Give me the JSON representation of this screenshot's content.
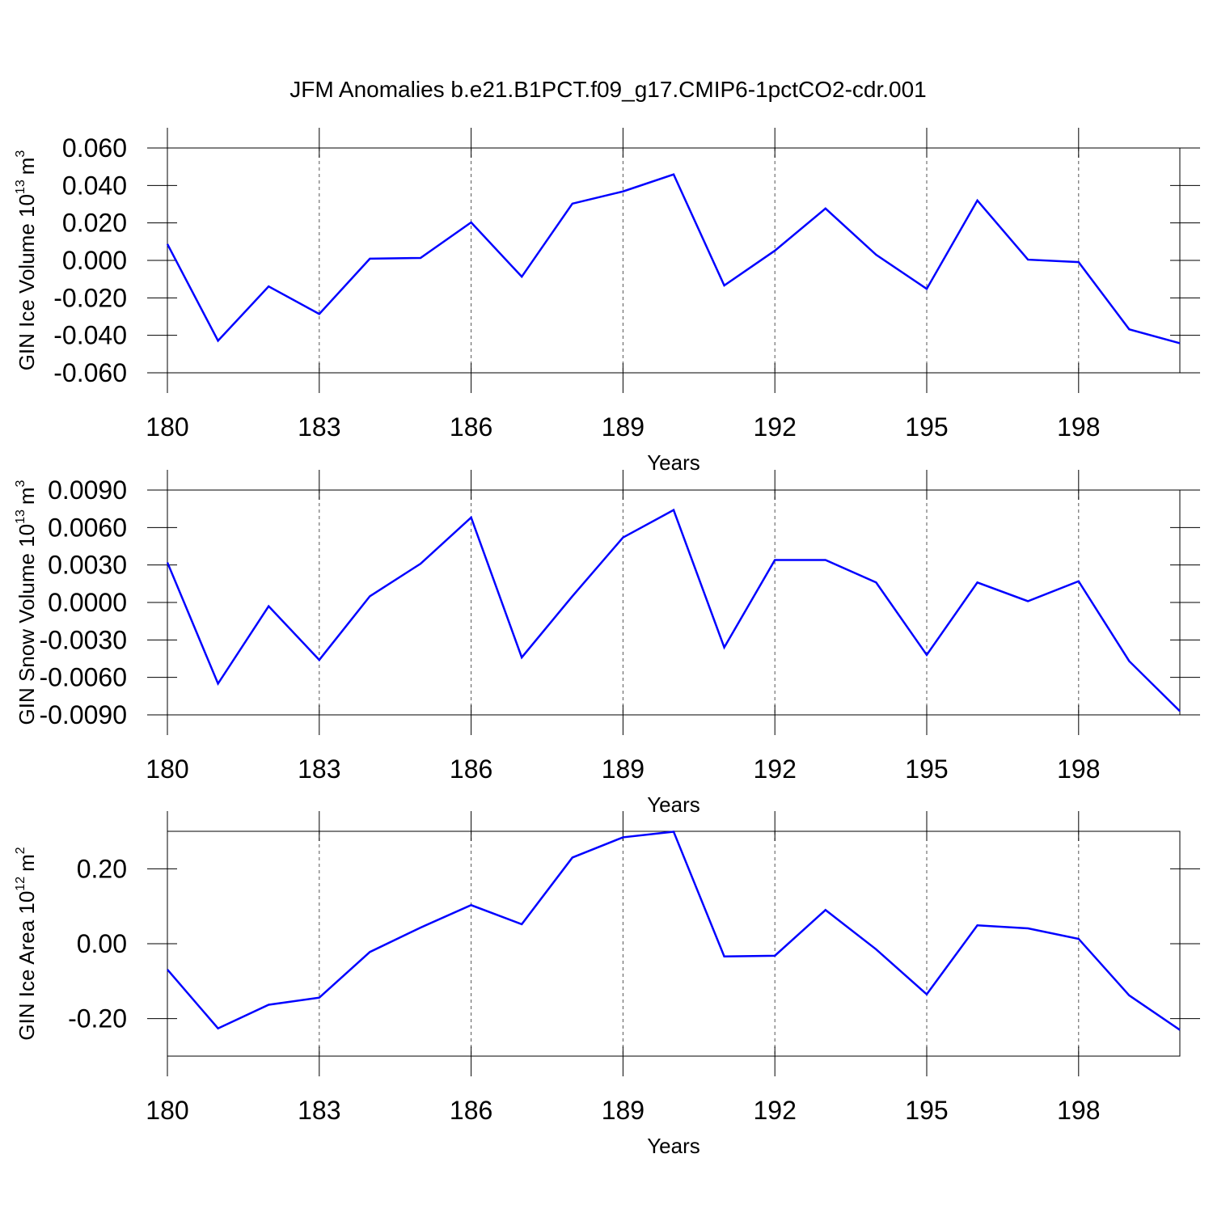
{
  "chart_data": [
    {
      "type": "line",
      "title": "JFM Anomalies b.e21.B1PCT.f09_g17.CMIP6-1pctCO2-cdr.001",
      "xlabel": "Years",
      "ylabel_parts": [
        "GIN Ice Volume 10",
        "13",
        "m",
        "3"
      ],
      "x": [
        180,
        181,
        182,
        183,
        184,
        185,
        186,
        187,
        188,
        189,
        190,
        191,
        192,
        193,
        194,
        195,
        196,
        197,
        198,
        199,
        200
      ],
      "values": [
        0.0087,
        -0.0429,
        -0.0139,
        -0.0286,
        0.0009,
        0.0013,
        0.0203,
        -0.0087,
        0.0303,
        0.0368,
        0.0459,
        -0.0134,
        0.0052,
        0.0277,
        0.003,
        -0.0152,
        0.032,
        0.0004,
        -0.0009,
        -0.0368,
        -0.0442
      ],
      "color": "#0000ff",
      "xlim": [
        180,
        200
      ],
      "xticks": [
        180,
        183,
        186,
        189,
        192,
        195,
        198
      ],
      "ylim": [
        -0.06,
        0.06
      ],
      "yticks": [
        {
          "value": 0.06,
          "label": "0.060"
        },
        {
          "value": 0.04,
          "label": "0.040"
        },
        {
          "value": 0.02,
          "label": "0.020"
        },
        {
          "value": 0,
          "label": "0.000"
        },
        {
          "value": -0.02,
          "label": "-0.020"
        },
        {
          "value": -0.04,
          "label": "-0.040"
        },
        {
          "value": -0.06,
          "label": "-0.060"
        }
      ],
      "grid": true
    },
    {
      "type": "line",
      "xlabel": "Years",
      "ylabel_parts": [
        "GIN Snow Volume 10",
        "13",
        "m",
        "3"
      ],
      "x": [
        180,
        181,
        182,
        183,
        184,
        185,
        186,
        187,
        188,
        189,
        190,
        191,
        192,
        193,
        194,
        195,
        196,
        197,
        198,
        199,
        200
      ],
      "values": [
        0.0032,
        -0.0065,
        -0.0003,
        -0.0046,
        0.0005,
        0.0031,
        0.0068,
        -0.0044,
        0.0005,
        0.0052,
        0.0074,
        -0.0036,
        0.0034,
        0.0034,
        0.0016,
        -0.0042,
        0.0016,
        0.0001,
        0.0017,
        -0.0047,
        -0.0087
      ],
      "color": "#0000ff",
      "xlim": [
        180,
        200
      ],
      "xticks": [
        180,
        183,
        186,
        189,
        192,
        195,
        198
      ],
      "ylim": [
        -0.009,
        0.009
      ],
      "yticks": [
        {
          "value": 0.009,
          "label": "0.0090"
        },
        {
          "value": 0.006,
          "label": "0.0060"
        },
        {
          "value": 0.003,
          "label": "0.0030"
        },
        {
          "value": 0,
          "label": "0.0000"
        },
        {
          "value": -0.003,
          "label": "-0.0030"
        },
        {
          "value": -0.006,
          "label": "-0.0060"
        },
        {
          "value": -0.009,
          "label": "-0.0090"
        }
      ],
      "grid": true
    },
    {
      "type": "line",
      "xlabel": "Years",
      "ylabel_parts": [
        "GIN Ice Area 10",
        "12",
        "m",
        "2"
      ],
      "x": [
        180,
        181,
        182,
        183,
        184,
        185,
        186,
        187,
        188,
        189,
        190,
        191,
        192,
        193,
        194,
        195,
        196,
        197,
        198,
        199,
        200
      ],
      "values": [
        -0.069,
        -0.226,
        -0.163,
        -0.144,
        -0.022,
        0.043,
        0.103,
        0.052,
        0.23,
        0.284,
        0.299,
        -0.034,
        -0.032,
        0.09,
        -0.015,
        -0.135,
        0.049,
        0.041,
        0.013,
        -0.138,
        -0.23
      ],
      "color": "#0000ff",
      "xlim": [
        180,
        200
      ],
      "xticks": [
        180,
        183,
        186,
        189,
        192,
        195,
        198
      ],
      "ylim": [
        -0.3,
        0.3
      ],
      "yticks": [
        {
          "value": 0.2,
          "label": "0.20"
        },
        {
          "value": 0,
          "label": "0.00"
        },
        {
          "value": -0.2,
          "label": "-0.20"
        }
      ],
      "grid": true
    }
  ]
}
